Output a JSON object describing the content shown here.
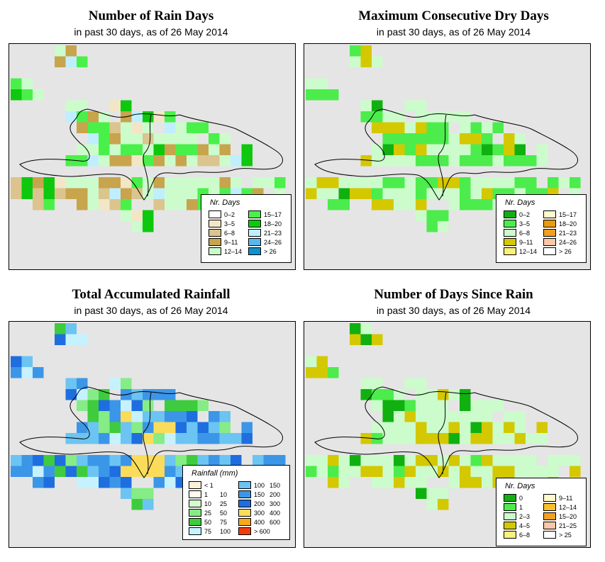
{
  "panels": {
    "rain_days": {
      "title": "Number of Rain Days",
      "subtitle": "in past 30 days, as of  26 May 2014",
      "legend_title": "Nr. Days",
      "legend": [
        {
          "label": "0–2",
          "color": "#ffffff"
        },
        {
          "label": "3–5",
          "color": "#f3e6c7"
        },
        {
          "label": "6–8",
          "color": "#dcc48e"
        },
        {
          "label": "9–11",
          "color": "#c8a44c"
        },
        {
          "label": "12–14",
          "color": "#ccfccc"
        },
        {
          "label": "15–17",
          "color": "#4af04a"
        },
        {
          "label": "18–20",
          "color": "#0ec80e"
        },
        {
          "label": "21–23",
          "color": "#bfefff"
        },
        {
          "label": "24–26",
          "color": "#58b8ee"
        },
        {
          "label": "> 26",
          "color": "#1090cc"
        }
      ]
    },
    "dry_days": {
      "title": "Maximum Consecutive Dry Days",
      "subtitle": "in past 30 days, as of  26 May 2014",
      "legend_title": "Nr. Days",
      "legend": [
        {
          "label": "0–2",
          "color": "#11b011"
        },
        {
          "label": "3–5",
          "color": "#4cec4c"
        },
        {
          "label": "6–8",
          "color": "#ccfccc"
        },
        {
          "label": "9–11",
          "color": "#d4c800"
        },
        {
          "label": "12–14",
          "color": "#faf07a"
        },
        {
          "label": "15–17",
          "color": "#fff9cc"
        },
        {
          "label": "18–20",
          "color": "#e89c10"
        },
        {
          "label": "21–23",
          "color": "#f2a020"
        },
        {
          "label": "24–26",
          "color": "#f8c8a8"
        },
        {
          "label": "> 26",
          "color": "#ffffff"
        }
      ]
    },
    "rainfall": {
      "title": "Total Accumulated Rainfall",
      "subtitle": "in past 30 days, as of  26 May 2014",
      "legend_title": "Rainfall (mm)",
      "legend": [
        {
          "from": "< 1",
          "to": "",
          "color": "#fdf3d8"
        },
        {
          "from": "1",
          "to": "10",
          "color": "#fff9ee"
        },
        {
          "from": "10",
          "to": "25",
          "color": "#d6fad0"
        },
        {
          "from": "25",
          "to": "50",
          "color": "#86ec86"
        },
        {
          "from": "50",
          "to": "75",
          "color": "#3ecc3e"
        },
        {
          "from": "75",
          "to": "100",
          "color": "#c6f2fe"
        },
        {
          "from": "100",
          "to": "150",
          "color": "#6cc4f2"
        },
        {
          "from": "150",
          "to": "200",
          "color": "#3c96e8"
        },
        {
          "from": "200",
          "to": "300",
          "color": "#1e6ee0"
        },
        {
          "from": "300",
          "to": "400",
          "color": "#fadc5a"
        },
        {
          "from": "400",
          "to": "600",
          "color": "#f8a818"
        },
        {
          "from": "> 600",
          "to": "",
          "color": "#f03c0c"
        }
      ]
    },
    "since_rain": {
      "title": "Number of Days Since Rain",
      "subtitle": "in past 30 days, as of  26 May 2014",
      "legend_title": "Nr. Days",
      "legend": [
        {
          "label": "0",
          "color": "#11b011"
        },
        {
          "label": "1",
          "color": "#4cec4c"
        },
        {
          "label": "2–3",
          "color": "#ccfccc"
        },
        {
          "label": "4–5",
          "color": "#d4c800"
        },
        {
          "label": "6–8",
          "color": "#faf07a"
        },
        {
          "label": "9–11",
          "color": "#fff9cc"
        },
        {
          "label": "12–14",
          "color": "#f8c030"
        },
        {
          "label": "15–20",
          "color": "#f2a020"
        },
        {
          "label": "21–25",
          "color": "#f8c8a8"
        },
        {
          "label": "> 25",
          "color": "#ffffff"
        }
      ]
    }
  }
}
